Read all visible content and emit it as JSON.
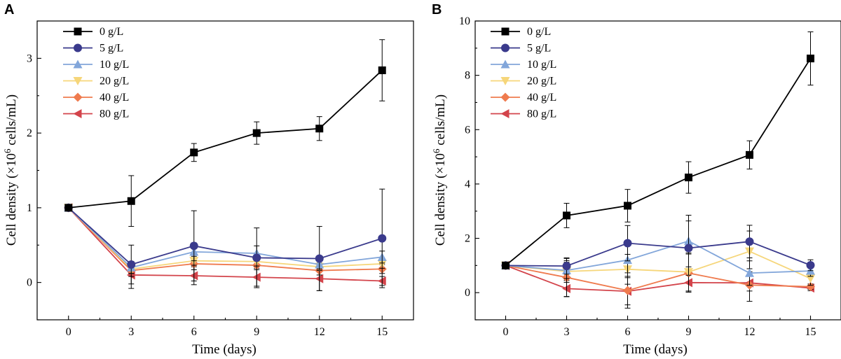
{
  "chart_data": [
    {
      "type": "line",
      "panel": "A",
      "xlabel": "Time (days)",
      "ylabel_prefix": "Cell density (×10",
      "ylabel_exp": "6",
      "ylabel_suffix": " cells/mL)",
      "x": [
        0,
        3,
        6,
        9,
        12,
        15
      ],
      "xticks": [
        "0",
        "3",
        "6",
        "9",
        "12",
        "15"
      ],
      "yticks": [
        "0",
        "1",
        "2",
        "3"
      ],
      "ylim": [
        -0.5,
        3.5
      ],
      "xlim": [
        -1.5,
        16.5
      ],
      "series": [
        {
          "name": "0 g/L",
          "color": "#000000",
          "marker": "square",
          "values": [
            1.0,
            1.09,
            1.74,
            2.0,
            2.06,
            2.84
          ],
          "errors": [
            0.02,
            0.34,
            0.12,
            0.15,
            0.16,
            0.41
          ]
        },
        {
          "name": "5 g/L",
          "color": "#3a3a8c",
          "marker": "circle",
          "values": [
            1.0,
            0.24,
            0.49,
            0.33,
            0.32,
            0.59
          ],
          "errors": [
            0.02,
            0.26,
            0.47,
            0.4,
            0.43,
            0.66
          ]
        },
        {
          "name": "10 g/L",
          "color": "#82a6da",
          "marker": "triangle-up",
          "values": [
            1.0,
            0.2,
            0.41,
            0.39,
            0.24,
            0.34
          ],
          "errors": [
            0.02,
            0.08,
            0.12,
            0.1,
            0.06,
            0.08
          ]
        },
        {
          "name": "20 g/L",
          "color": "#f6d67a",
          "marker": "triangle-down",
          "values": [
            1.0,
            0.18,
            0.29,
            0.28,
            0.21,
            0.25
          ],
          "errors": [
            0.02,
            0.06,
            0.06,
            0.06,
            0.05,
            0.06
          ]
        },
        {
          "name": "40 g/L",
          "color": "#ef7b4e",
          "marker": "diamond",
          "values": [
            1.0,
            0.16,
            0.25,
            0.23,
            0.16,
            0.18
          ],
          "errors": [
            0.02,
            0.08,
            0.08,
            0.06,
            0.06,
            0.06
          ]
        },
        {
          "name": "80 g/L",
          "color": "#d3444b",
          "marker": "triangle-left",
          "values": [
            1.0,
            0.1,
            0.09,
            0.07,
            0.05,
            0.02
          ],
          "errors": [
            0.02,
            0.18,
            0.12,
            0.12,
            0.16,
            0.06
          ]
        }
      ]
    },
    {
      "type": "line",
      "panel": "B",
      "xlabel": "Time (days)",
      "ylabel_prefix": "Cell density (×10",
      "ylabel_exp": "6",
      "ylabel_suffix": " cells/mL)",
      "x": [
        0,
        3,
        6,
        9,
        12,
        15
      ],
      "xticks": [
        "0",
        "3",
        "6",
        "9",
        "12",
        "15"
      ],
      "yticks": [
        "0",
        "2",
        "4",
        "6",
        "8",
        "10"
      ],
      "ylim": [
        -1,
        10
      ],
      "xlim": [
        -1.5,
        16.5
      ],
      "series": [
        {
          "name": "0 g/L",
          "color": "#000000",
          "marker": "square",
          "values": [
            1.0,
            2.84,
            3.2,
            4.24,
            5.07,
            8.62
          ],
          "errors": [
            0.05,
            0.45,
            0.6,
            0.58,
            0.52,
            0.98
          ]
        },
        {
          "name": "5 g/L",
          "color": "#3a3a8c",
          "marker": "circle",
          "values": [
            1.0,
            0.98,
            1.82,
            1.64,
            1.88,
            1.01
          ],
          "errors": [
            0.05,
            0.3,
            0.65,
            1.0,
            0.6,
            0.2
          ]
        },
        {
          "name": "10 g/L",
          "color": "#82a6da",
          "marker": "triangle-up",
          "values": [
            1.0,
            0.82,
            1.2,
            1.9,
            0.72,
            0.8
          ],
          "errors": [
            0.05,
            0.3,
            0.6,
            0.95,
            0.45,
            0.2
          ]
        },
        {
          "name": "20 g/L",
          "color": "#f6d67a",
          "marker": "triangle-down",
          "values": [
            1.0,
            0.78,
            0.86,
            0.76,
            1.52,
            0.52
          ],
          "errors": [
            0.05,
            0.4,
            0.55,
            0.7,
            0.75,
            0.25
          ]
        },
        {
          "name": "40 g/L",
          "color": "#ef7b4e",
          "marker": "diamond",
          "values": [
            1.0,
            0.56,
            0.08,
            0.72,
            0.28,
            0.22
          ],
          "errors": [
            0.05,
            0.7,
            0.65,
            0.7,
            0.6,
            0.1
          ]
        },
        {
          "name": "80 g/L",
          "color": "#d3444b",
          "marker": "triangle-left",
          "values": [
            1.0,
            0.15,
            0.05,
            0.37,
            0.36,
            0.17
          ],
          "errors": [
            0.05,
            0.3,
            0.5,
            0.35,
            0.3,
            0.1
          ]
        }
      ]
    }
  ]
}
